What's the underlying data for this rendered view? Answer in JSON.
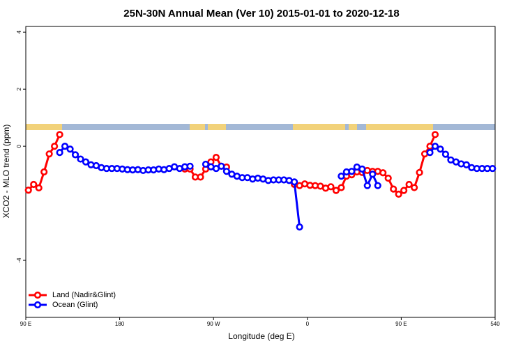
{
  "chart_data": {
    "type": "line",
    "title": "25N-30N Annual Mean (Ver 10)   2015-01-01 to 2020-12-18",
    "x_label": "Longitude (deg E)",
    "y_label": "XCO2 - MLO trend (ppm)",
    "xlim": [
      90,
      540
    ],
    "ylim": [
      -6,
      4.2
    ],
    "xticks": [
      {
        "value": 90,
        "label": "90 E"
      },
      180,
      {
        "value": 270,
        "label": "90 W"
      },
      {
        "value": 360,
        "label": "0"
      },
      {
        "value": 450,
        "label": "90 E"
      },
      540
    ],
    "yticks": [
      -4,
      0,
      2,
      4
    ],
    "legend": "bottom-left",
    "x": [
      92.5,
      97.5,
      102.5,
      107.5,
      112.5,
      117.5,
      122.5,
      127.5,
      132.5,
      137.5,
      142.5,
      147.5,
      152.5,
      157.5,
      162.5,
      167.5,
      172.5,
      177.5,
      182.5,
      187.5,
      192.5,
      197.5,
      202.5,
      207.5,
      212.5,
      217.5,
      222.5,
      227.5,
      232.5,
      237.5,
      242.5,
      247.5,
      252.5,
      257.5,
      262.5,
      267.5,
      272.5,
      277.5,
      282.5,
      287.5,
      292.5,
      297.5,
      302.5,
      307.5,
      312.5,
      317.5,
      322.5,
      327.5,
      332.5,
      337.5,
      342.5,
      347.5,
      352.5,
      357.5,
      362.5,
      367.5,
      372.5,
      377.5,
      382.5,
      387.5,
      392.5,
      397.5,
      402.5,
      407.5,
      412.5,
      417.5,
      422.5,
      427.5,
      432.5,
      437.5,
      442.5,
      447.5,
      452.5,
      457.5,
      462.5,
      467.5,
      472.5,
      477.5,
      482.5,
      487.5,
      492.5,
      497.5,
      502.5,
      507.5,
      512.5,
      517.5,
      522.5,
      527.5,
      532.5,
      537.5
    ],
    "series": [
      {
        "name": "Land (Nadir&Glint)",
        "color": "#ff0000",
        "values": [
          -1.54,
          -1.34,
          -1.46,
          -0.9,
          -0.27,
          0,
          0.41,
          null,
          null,
          null,
          null,
          null,
          null,
          null,
          null,
          null,
          null,
          null,
          null,
          null,
          null,
          null,
          null,
          null,
          null,
          null,
          null,
          null,
          null,
          null,
          -0.8,
          -0.8,
          -1.08,
          -1.08,
          -0.8,
          -0.55,
          -0.39,
          -0.7,
          -0.73,
          null,
          null,
          null,
          null,
          null,
          null,
          null,
          null,
          null,
          null,
          null,
          null,
          -1.34,
          -1.38,
          -1.32,
          -1.37,
          -1.38,
          -1.4,
          -1.47,
          -1.42,
          -1.55,
          -1.45,
          -1.05,
          -1.0,
          -0.9,
          -0.92,
          -0.85,
          -0.88,
          -0.88,
          -0.93,
          -1.12,
          -1.5,
          -1.68,
          -1.55,
          -1.34,
          -1.45,
          -0.92,
          -0.27,
          0,
          0.41,
          null,
          null,
          null,
          null,
          null,
          null,
          null,
          null,
          null,
          null,
          null
        ]
      },
      {
        "name": "Ocean (Glint)",
        "color": "#0000ff",
        "values": [
          null,
          null,
          null,
          null,
          null,
          null,
          -0.22,
          0,
          -0.1,
          -0.3,
          -0.45,
          -0.55,
          -0.65,
          -0.68,
          -0.75,
          -0.78,
          -0.78,
          -0.78,
          -0.8,
          -0.82,
          -0.83,
          -0.82,
          -0.85,
          -0.83,
          -0.83,
          -0.8,
          -0.82,
          -0.78,
          -0.72,
          -0.78,
          -0.72,
          -0.7,
          null,
          null,
          -0.63,
          -0.72,
          -0.78,
          -0.7,
          -0.88,
          -0.98,
          -1.05,
          -1.1,
          -1.1,
          -1.15,
          -1.12,
          -1.15,
          -1.2,
          -1.18,
          -1.18,
          -1.18,
          -1.2,
          -1.25,
          -2.83,
          null,
          null,
          null,
          null,
          null,
          null,
          null,
          -1.05,
          -0.9,
          -0.88,
          -0.73,
          -0.8,
          -1.38,
          -0.98,
          -1.38,
          null,
          null,
          null,
          null,
          null,
          null,
          null,
          null,
          null,
          -0.22,
          0,
          -0.1,
          -0.28,
          -0.48,
          -0.55,
          -0.62,
          -0.65,
          -0.75,
          -0.78,
          -0.78,
          -0.78,
          -0.78
        ]
      }
    ]
  }
}
